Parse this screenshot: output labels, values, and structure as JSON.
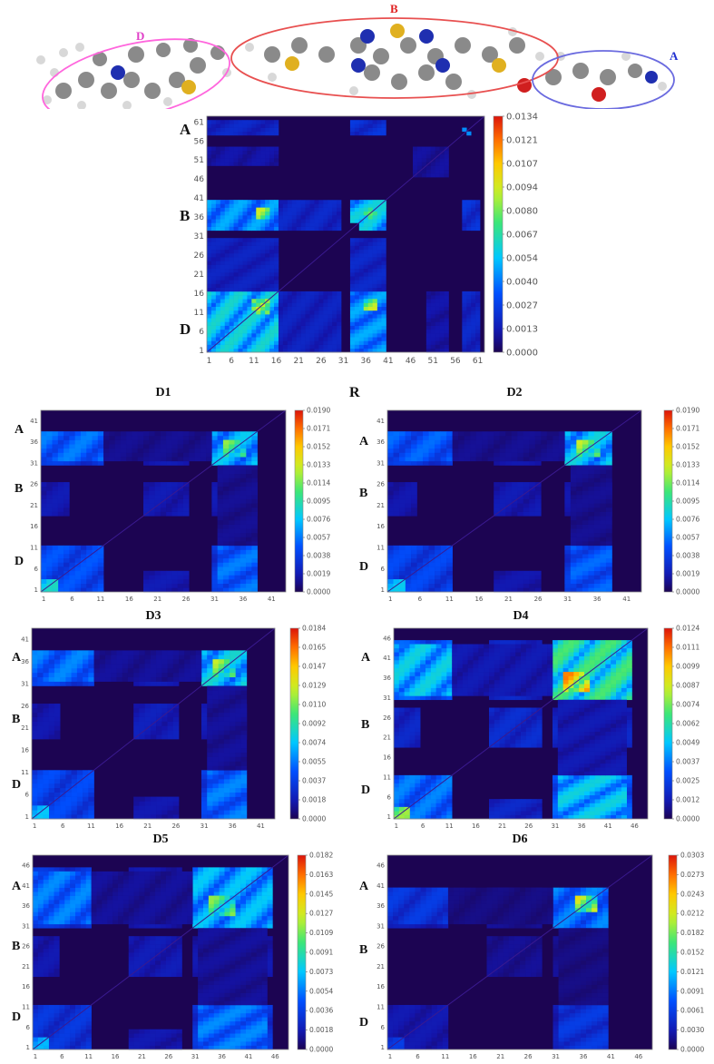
{
  "molecule": {
    "labels": [
      {
        "text": "D",
        "color": "#e040c8"
      },
      {
        "text": "B",
        "color": "#e02020"
      },
      {
        "text": "A",
        "color": "#2030d0"
      }
    ],
    "ellipse_colors": {
      "D": "#ff66dd",
      "B": "#e85050",
      "A": "#6a6adf"
    }
  },
  "stray_label": "R",
  "chart_data": [
    {
      "type": "heatmap",
      "name": "main",
      "title": "",
      "n": 62,
      "x_ticks": [
        "1",
        "6",
        "11",
        "16",
        "21",
        "26",
        "31",
        "36",
        "41",
        "46",
        "51",
        "56",
        "61"
      ],
      "y_ticks": [
        "1",
        "6",
        "11",
        "16",
        "21",
        "26",
        "31",
        "36",
        "41",
        "46",
        "51",
        "56",
        "61"
      ],
      "fragment_labels": [
        "A",
        "B",
        "D"
      ],
      "colorbar_ticks": [
        "0.0000",
        "0.0013",
        "0.0027",
        "0.0040",
        "0.0054",
        "0.0067",
        "0.0080",
        "0.0094",
        "0.0107",
        "0.0121",
        "0.0134"
      ],
      "vmax": 0.0134,
      "blocks": [
        {
          "x": [
            1,
            16
          ],
          "y": [
            1,
            16
          ],
          "v": 0.0062
        },
        {
          "x": [
            12,
            14
          ],
          "y": [
            11,
            14
          ],
          "v": 0.0112
        },
        {
          "x": [
            35,
            40
          ],
          "y": [
            1,
            16
          ],
          "v": 0.005
        },
        {
          "x": [
            36,
            38
          ],
          "y": [
            12,
            13
          ],
          "v": 0.0102
        },
        {
          "x": [
            1,
            16
          ],
          "y": [
            33,
            40
          ],
          "v": 0.005
        },
        {
          "x": [
            12,
            14
          ],
          "y": [
            36,
            38
          ],
          "v": 0.0094
        },
        {
          "x": [
            35,
            40
          ],
          "y": [
            33,
            40
          ],
          "v": 0.006
        },
        {
          "x": [
            37,
            38
          ],
          "y": [
            36,
            37
          ],
          "v": 0.008
        },
        {
          "x": [
            17,
            30
          ],
          "y": [
            33,
            40
          ],
          "v": 0.002
        },
        {
          "x": [
            17,
            30
          ],
          "y": [
            1,
            16
          ],
          "v": 0.0018
        },
        {
          "x": [
            58,
            61
          ],
          "y": [
            1,
            16
          ],
          "v": 0.002
        },
        {
          "x": [
            58,
            61
          ],
          "y": [
            33,
            40
          ],
          "v": 0.0025
        },
        {
          "x": [
            1,
            16
          ],
          "y": [
            50,
            54
          ],
          "v": 0.0012
        },
        {
          "x": [
            47,
            54
          ],
          "y": [
            47,
            54
          ],
          "v": 0.001
        },
        {
          "x": [
            59,
            59
          ],
          "y": [
            58,
            58
          ],
          "v": 0.005
        }
      ]
    },
    {
      "type": "heatmap",
      "name": "D1",
      "title": "D1",
      "n": 43,
      "x_ticks": [
        "1",
        "6",
        "11",
        "16",
        "21",
        "26",
        "31",
        "36",
        "41"
      ],
      "y_ticks": [
        "1",
        "6",
        "11",
        "16",
        "21",
        "26",
        "31",
        "36",
        "41"
      ],
      "fragment_labels": [
        "A",
        "B",
        "D"
      ],
      "colorbar_ticks": [
        "0.0000",
        "0.0019",
        "0.0038",
        "0.0057",
        "0.0076",
        "0.0095",
        "0.0114",
        "0.0133",
        "0.0152",
        "0.0171",
        "0.0190"
      ],
      "vmax": 0.019,
      "blocks": [
        {
          "x": [
            1,
            11
          ],
          "y": [
            1,
            11
          ],
          "v": 0.005
        },
        {
          "x": [
            1,
            3
          ],
          "y": [
            1,
            3
          ],
          "v": 0.009
        },
        {
          "x": [
            31,
            38
          ],
          "y": [
            1,
            11
          ],
          "v": 0.004
        },
        {
          "x": [
            1,
            11
          ],
          "y": [
            32,
            38
          ],
          "v": 0.006
        },
        {
          "x": [
            31,
            38
          ],
          "y": [
            31,
            38
          ],
          "v": 0.008
        },
        {
          "x": [
            33,
            36
          ],
          "y": [
            33,
            36
          ],
          "v": 0.012
        },
        {
          "x": [
            19,
            26
          ],
          "y": [
            19,
            26
          ],
          "v": 0.002
        },
        {
          "x": [
            1,
            5
          ],
          "y": [
            19,
            26
          ],
          "v": 0.002
        },
        {
          "x": [
            31,
            38
          ],
          "y": [
            19,
            26
          ],
          "v": 0.002
        },
        {
          "x": [
            12,
            30
          ],
          "y": [
            32,
            38
          ],
          "v": 0.0012
        }
      ]
    },
    {
      "type": "heatmap",
      "name": "D2",
      "title": "D2",
      "n": 43,
      "x_ticks": [
        "1",
        "6",
        "11",
        "16",
        "21",
        "26",
        "31",
        "36",
        "41"
      ],
      "y_ticks": [
        "1",
        "6",
        "11",
        "16",
        "21",
        "26",
        "31",
        "36",
        "41"
      ],
      "fragment_labels": [
        "A",
        "B",
        "D"
      ],
      "colorbar_ticks": [
        "0.0000",
        "0.0019",
        "0.0038",
        "0.0057",
        "0.0076",
        "0.0095",
        "0.0114",
        "0.0133",
        "0.0152",
        "0.0171",
        "0.0190"
      ],
      "vmax": 0.019,
      "blocks": [
        {
          "x": [
            1,
            11
          ],
          "y": [
            1,
            11
          ],
          "v": 0.0045
        },
        {
          "x": [
            1,
            3
          ],
          "y": [
            1,
            3
          ],
          "v": 0.008
        },
        {
          "x": [
            31,
            38
          ],
          "y": [
            1,
            11
          ],
          "v": 0.004
        },
        {
          "x": [
            1,
            11
          ],
          "y": [
            32,
            38
          ],
          "v": 0.0055
        },
        {
          "x": [
            31,
            38
          ],
          "y": [
            31,
            38
          ],
          "v": 0.0085
        },
        {
          "x": [
            33,
            36
          ],
          "y": [
            33,
            36
          ],
          "v": 0.013
        },
        {
          "x": [
            19,
            26
          ],
          "y": [
            19,
            26
          ],
          "v": 0.002
        },
        {
          "x": [
            1,
            5
          ],
          "y": [
            19,
            26
          ],
          "v": 0.0018
        },
        {
          "x": [
            31,
            38
          ],
          "y": [
            19,
            26
          ],
          "v": 0.0018
        },
        {
          "x": [
            12,
            30
          ],
          "y": [
            32,
            38
          ],
          "v": 0.0012
        }
      ]
    },
    {
      "type": "heatmap",
      "name": "D3",
      "title": "D3",
      "n": 43,
      "x_ticks": [
        "1",
        "6",
        "11",
        "16",
        "21",
        "26",
        "31",
        "36",
        "41"
      ],
      "y_ticks": [
        "1",
        "6",
        "11",
        "16",
        "21",
        "26",
        "31",
        "36",
        "41"
      ],
      "fragment_labels": [
        "A",
        "B",
        "D"
      ],
      "colorbar_ticks": [
        "0.0000",
        "0.0018",
        "0.0037",
        "0.0055",
        "0.0074",
        "0.0092",
        "0.0110",
        "0.0129",
        "0.0147",
        "0.0165",
        "0.0184"
      ],
      "vmax": 0.0184,
      "blocks": [
        {
          "x": [
            1,
            11
          ],
          "y": [
            1,
            11
          ],
          "v": 0.0045
        },
        {
          "x": [
            1,
            3
          ],
          "y": [
            1,
            3
          ],
          "v": 0.0075
        },
        {
          "x": [
            31,
            38
          ],
          "y": [
            1,
            11
          ],
          "v": 0.0042
        },
        {
          "x": [
            1,
            11
          ],
          "y": [
            32,
            38
          ],
          "v": 0.006
        },
        {
          "x": [
            31,
            38
          ],
          "y": [
            31,
            38
          ],
          "v": 0.0085
        },
        {
          "x": [
            33,
            36
          ],
          "y": [
            33,
            36
          ],
          "v": 0.0125
        },
        {
          "x": [
            19,
            26
          ],
          "y": [
            19,
            26
          ],
          "v": 0.0022
        },
        {
          "x": [
            1,
            5
          ],
          "y": [
            19,
            26
          ],
          "v": 0.0018
        },
        {
          "x": [
            31,
            38
          ],
          "y": [
            19,
            26
          ],
          "v": 0.002
        },
        {
          "x": [
            12,
            30
          ],
          "y": [
            32,
            38
          ],
          "v": 0.0013
        }
      ]
    },
    {
      "type": "heatmap",
      "name": "D4",
      "title": "D4",
      "n": 48,
      "x_ticks": [
        "1",
        "6",
        "11",
        "16",
        "21",
        "26",
        "31",
        "36",
        "41",
        "46"
      ],
      "y_ticks": [
        "1",
        "6",
        "11",
        "16",
        "21",
        "26",
        "31",
        "36",
        "41",
        "46"
      ],
      "fragment_labels": [
        "A",
        "B",
        "D"
      ],
      "colorbar_ticks": [
        "0.0000",
        "0.0012",
        "0.0025",
        "0.0037",
        "0.0049",
        "0.0062",
        "0.0074",
        "0.0087",
        "0.0099",
        "0.0111",
        "0.0124"
      ],
      "vmax": 0.0124,
      "blocks": [
        {
          "x": [
            1,
            11
          ],
          "y": [
            1,
            11
          ],
          "v": 0.004
        },
        {
          "x": [
            1,
            3
          ],
          "y": [
            1,
            3
          ],
          "v": 0.008
        },
        {
          "x": [
            31,
            45
          ],
          "y": [
            1,
            11
          ],
          "v": 0.0035
        },
        {
          "x": [
            1,
            11
          ],
          "y": [
            32,
            44
          ],
          "v": 0.0055
        },
        {
          "x": [
            31,
            45
          ],
          "y": [
            31,
            45
          ],
          "v": 0.007
        },
        {
          "x": [
            33,
            37
          ],
          "y": [
            33,
            37
          ],
          "v": 0.011
        },
        {
          "x": [
            19,
            28
          ],
          "y": [
            19,
            28
          ],
          "v": 0.002
        },
        {
          "x": [
            1,
            5
          ],
          "y": [
            19,
            28
          ],
          "v": 0.0018
        },
        {
          "x": [
            31,
            45
          ],
          "y": [
            19,
            28
          ],
          "v": 0.0018
        },
        {
          "x": [
            12,
            30
          ],
          "y": [
            32,
            44
          ],
          "v": 0.0013
        }
      ]
    },
    {
      "type": "heatmap",
      "name": "D5",
      "title": "D5",
      "n": 48,
      "x_ticks": [
        "1",
        "6",
        "11",
        "16",
        "21",
        "26",
        "31",
        "36",
        "41",
        "46"
      ],
      "y_ticks": [
        "1",
        "6",
        "11",
        "16",
        "21",
        "26",
        "31",
        "36",
        "41",
        "46"
      ],
      "fragment_labels": [
        "A",
        "B",
        "D"
      ],
      "colorbar_ticks": [
        "0.0000",
        "0.0018",
        "0.0036",
        "0.0054",
        "0.0073",
        "0.0091",
        "0.0109",
        "0.0127",
        "0.0145",
        "0.0163",
        "0.0182"
      ],
      "vmax": 0.0182,
      "blocks": [
        {
          "x": [
            1,
            11
          ],
          "y": [
            1,
            11
          ],
          "v": 0.0035
        },
        {
          "x": [
            1,
            3
          ],
          "y": [
            1,
            3
          ],
          "v": 0.007
        },
        {
          "x": [
            31,
            45
          ],
          "y": [
            1,
            11
          ],
          "v": 0.0035
        },
        {
          "x": [
            1,
            11
          ],
          "y": [
            32,
            44
          ],
          "v": 0.006
        },
        {
          "x": [
            31,
            45
          ],
          "y": [
            31,
            45
          ],
          "v": 0.0075
        },
        {
          "x": [
            34,
            38
          ],
          "y": [
            34,
            38
          ],
          "v": 0.0115
        },
        {
          "x": [
            19,
            28
          ],
          "y": [
            19,
            28
          ],
          "v": 0.002
        },
        {
          "x": [
            1,
            5
          ],
          "y": [
            19,
            28
          ],
          "v": 0.0018
        },
        {
          "x": [
            31,
            45
          ],
          "y": [
            19,
            28
          ],
          "v": 0.0018
        },
        {
          "x": [
            12,
            30
          ],
          "y": [
            32,
            44
          ],
          "v": 0.0013
        }
      ]
    },
    {
      "type": "heatmap",
      "name": "D6",
      "title": "D6",
      "n": 48,
      "x_ticks": [
        "1",
        "6",
        "11",
        "16",
        "21",
        "26",
        "31",
        "36",
        "41",
        "46"
      ],
      "y_ticks": [
        "1",
        "6",
        "11",
        "16",
        "21",
        "26",
        "31",
        "36",
        "41",
        "46"
      ],
      "fragment_labels": [
        "A",
        "B",
        "D"
      ],
      "colorbar_ticks": [
        "0.0000",
        "0.0030",
        "0.0061",
        "0.0091",
        "0.0121",
        "0.0152",
        "0.0182",
        "0.0212",
        "0.0243",
        "0.0273",
        "0.0303"
      ],
      "vmax": 0.0303,
      "blocks": [
        {
          "x": [
            1,
            11
          ],
          "y": [
            1,
            11
          ],
          "v": 0.003
        },
        {
          "x": [
            1,
            3
          ],
          "y": [
            1,
            3
          ],
          "v": 0.006
        },
        {
          "x": [
            31,
            40
          ],
          "y": [
            1,
            11
          ],
          "v": 0.0035
        },
        {
          "x": [
            1,
            11
          ],
          "y": [
            32,
            40
          ],
          "v": 0.006
        },
        {
          "x": [
            31,
            40
          ],
          "y": [
            31,
            40
          ],
          "v": 0.01
        },
        {
          "x": [
            35,
            38
          ],
          "y": [
            35,
            38
          ],
          "v": 0.023
        },
        {
          "x": [
            19,
            28
          ],
          "y": [
            19,
            28
          ],
          "v": 0.002
        },
        {
          "x": [
            31,
            40
          ],
          "y": [
            19,
            28
          ],
          "v": 0.002
        },
        {
          "x": [
            12,
            30
          ],
          "y": [
            32,
            40
          ],
          "v": 0.0015
        }
      ]
    }
  ]
}
